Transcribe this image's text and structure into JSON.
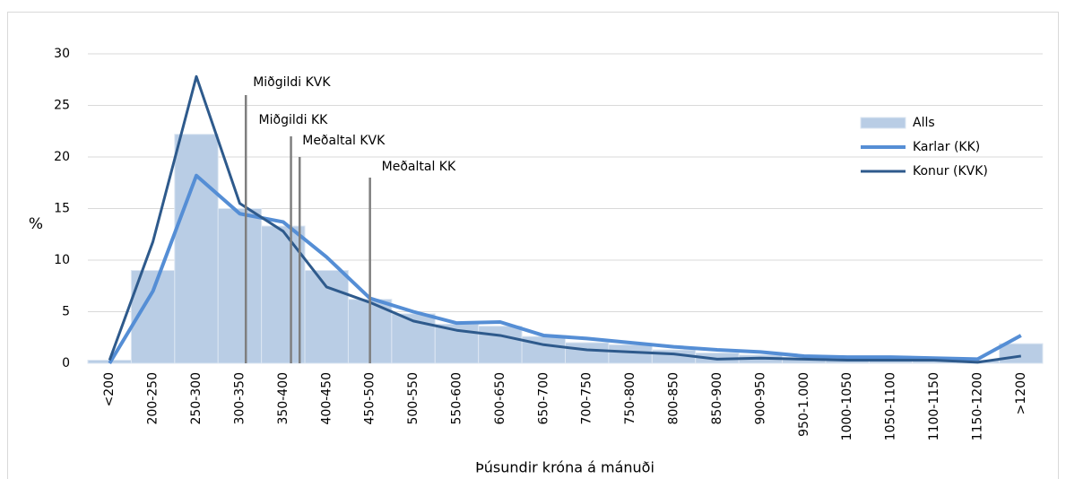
{
  "chart_data": {
    "type": "bar",
    "x_label": "Þúsundir króna á mánuði",
    "y_label": "%",
    "categories": [
      "<200",
      "200-250",
      "250-300",
      "300-350",
      "350-400",
      "400-450",
      "450-500",
      "500-550",
      "550-600",
      "600-650",
      "650-700",
      "700-750",
      "750-800",
      "800-850",
      "850-900",
      "900-950",
      "950-1.000",
      "1000-1050",
      "1050-1100",
      "1100-1150",
      "1150-1200",
      ">1200"
    ],
    "series": [
      {
        "name": "Alls",
        "type": "bar",
        "color": "#b9cde5",
        "values": [
          0.3,
          9,
          22.2,
          15,
          13.3,
          9,
          6.2,
          4.8,
          3.8,
          3.6,
          2.6,
          2.0,
          1.8,
          1.3,
          1.0,
          0.8,
          0.6,
          0.5,
          0.5,
          0.4,
          0.3,
          1.9
        ]
      },
      {
        "name": "Karlar (KK)",
        "type": "line",
        "color": "#558ed5",
        "values": [
          0,
          7,
          18.2,
          14.5,
          13.7,
          10.3,
          6.3,
          5,
          3.9,
          4,
          2.7,
          2.4,
          2,
          1.6,
          1.3,
          1.1,
          0.7,
          0.6,
          0.6,
          0.5,
          0.4,
          2.7
        ]
      },
      {
        "name": "Konur (KVK)",
        "type": "line",
        "color": "#2e5a8c",
        "values": [
          0.3,
          11.8,
          27.8,
          15.5,
          12.8,
          7.4,
          5.9,
          4.1,
          3.2,
          2.7,
          1.8,
          1.3,
          1.1,
          0.9,
          0.4,
          0.5,
          0.4,
          0.3,
          0.3,
          0.3,
          0.1,
          0.7
        ]
      }
    ],
    "annotations": [
      {
        "label": "Miðgildi KVK",
        "x": 332,
        "y": 26
      },
      {
        "label": "Miðgildi KK",
        "x": 384,
        "y": 22
      },
      {
        "label": "Meðaltal KVK",
        "x": 394,
        "y": 20
      },
      {
        "label": "Meðaltal KK",
        "x": 475,
        "y": 18
      }
    ],
    "annotation_color": "#7f7f7f",
    "ylim": [
      0,
      30
    ],
    "yticks": [
      0,
      5,
      10,
      15,
      20,
      25,
      30
    ],
    "grid": true,
    "legend": "right"
  }
}
